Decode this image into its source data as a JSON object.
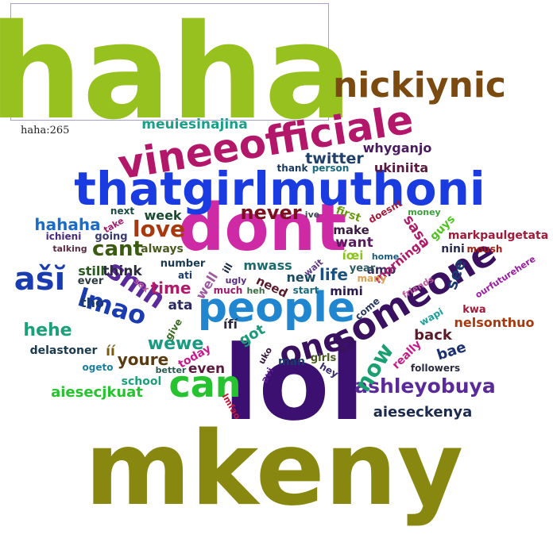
{
  "tooltip": {
    "text": "haha:265"
  },
  "words": [
    {
      "text": "haha",
      "color": "#96c11f"
    },
    {
      "text": "mkeny",
      "color": "#888810"
    },
    {
      "text": "lol",
      "color": "#3b1070"
    },
    {
      "text": "dont",
      "color": "#cf2aa6"
    },
    {
      "text": "thatgirlmuthoni",
      "color": "#1a3be0"
    },
    {
      "text": "vineeofficiale",
      "color": "#b3176a"
    },
    {
      "text": "nickiynic",
      "color": "#7a4a10"
    },
    {
      "text": "people",
      "color": "#1f86cf"
    },
    {
      "text": "someone",
      "color": "#3a1060"
    },
    {
      "text": "can",
      "color": "#26c230"
    },
    {
      "text": "ašĭ",
      "color": "#1a3cb0"
    },
    {
      "text": "one",
      "color": "#3a1060"
    },
    {
      "text": "lmao",
      "color": "#1a3cb0"
    },
    {
      "text": "smh",
      "color": "#5b2a9a"
    },
    {
      "text": "ashleyobuya",
      "color": "#5b2a9a"
    },
    {
      "text": "love",
      "color": "#a8380e"
    },
    {
      "text": "never",
      "color": "#7a1020"
    },
    {
      "text": "cant",
      "color": "#3a5a10"
    },
    {
      "text": "now",
      "color": "#1aa070"
    },
    {
      "text": "wewe",
      "color": "#1a9a80"
    },
    {
      "text": "hehe",
      "color": "#1aa07a"
    },
    {
      "text": "hahaha",
      "color": "#1a6cc8"
    },
    {
      "text": "time",
      "color": "#b01a6a"
    },
    {
      "text": "life",
      "color": "#1a5080"
    },
    {
      "text": "meuiesinajina",
      "color": "#1aa08a"
    },
    {
      "text": "twitter",
      "color": "#20406a"
    },
    {
      "text": "whyganjo",
      "color": "#4a1a60"
    },
    {
      "text": "ukiniita",
      "color": "#5a1a40"
    },
    {
      "text": "aiesecjkuat",
      "color": "#26c230"
    },
    {
      "text": "aieseckenya",
      "color": "#1a2a50"
    },
    {
      "text": "nelsonthuo",
      "color": "#a8380e"
    },
    {
      "text": "markpaulgetata",
      "color": "#a01a3a"
    },
    {
      "text": "youre",
      "color": "#5a3a10"
    },
    {
      "text": "even",
      "color": "#5a1a40"
    },
    {
      "text": "got",
      "color": "#1a9a7a"
    },
    {
      "text": "back",
      "color": "#5a1a2a"
    },
    {
      "text": "bae",
      "color": "#1a3070"
    },
    {
      "text": "sasa",
      "color": "#b01a6a"
    },
    {
      "text": "see",
      "color": "#1a3a70"
    },
    {
      "text": "want",
      "color": "#5a1a60"
    },
    {
      "text": "make",
      "color": "#3a1a40"
    },
    {
      "text": "week",
      "color": "#1a4a30"
    },
    {
      "text": "think",
      "color": "#2a2a40"
    },
    {
      "text": "still",
      "color": "#2a5a20"
    },
    {
      "text": "tho",
      "color": "#1a3a70"
    },
    {
      "text": "ata",
      "color": "#2a2a60"
    },
    {
      "text": "íí",
      "color": "#7a5a10"
    },
    {
      "text": "ífí",
      "color": "#2a2a40"
    },
    {
      "text": "new",
      "color": "#1a4a60"
    },
    {
      "text": "mwass",
      "color": "#1a6a70"
    },
    {
      "text": "need",
      "color": "#5a1a2a"
    },
    {
      "text": "mimi",
      "color": "#2a1a50"
    },
    {
      "text": "amp",
      "color": "#3a2a60"
    },
    {
      "text": "year",
      "color": "#2a5a60"
    },
    {
      "text": "íœi",
      "color": "#8ac41a"
    },
    {
      "text": "first",
      "color": "#6a9a10"
    },
    {
      "text": "ive",
      "color": "#3a4a50"
    },
    {
      "text": "morning",
      "color": "#b01a6a"
    },
    {
      "text": "nini",
      "color": "#2a2a50"
    },
    {
      "text": "guys",
      "color": "#4ac41a"
    },
    {
      "text": "money",
      "color": "#3aa03a"
    },
    {
      "text": "doesnt",
      "color": "#a01a3a"
    },
    {
      "text": "moush",
      "color": "#a81a10"
    },
    {
      "text": "home",
      "color": "#1a5a80"
    },
    {
      "text": "many",
      "color": "#e0a050"
    },
    {
      "text": "ourfuturehere",
      "color": "#9a1aa0"
    },
    {
      "text": "friends",
      "color": "#c05aa0"
    },
    {
      "text": "wapi",
      "color": "#1aa09a"
    },
    {
      "text": "kwa",
      "color": "#a01a3a"
    },
    {
      "text": "really",
      "color": "#c81a8a"
    },
    {
      "text": "come",
      "color": "#2a3a60"
    },
    {
      "text": "followers",
      "color": "#2a2a40"
    },
    {
      "text": "hey",
      "color": "#3a2a70"
    },
    {
      "text": "girls",
      "color": "#4a5a20"
    },
    {
      "text": "man",
      "color": "#1a3a70"
    },
    {
      "text": "uko",
      "color": "#3a1a40"
    },
    {
      "text": "avi",
      "color": "#5a1a90"
    },
    {
      "text": "lmfao",
      "color": "#c01a3a"
    },
    {
      "text": "ugly",
      "color": "#5a2a80"
    },
    {
      "text": "much",
      "color": "#a01a6a"
    },
    {
      "text": "heh",
      "color": "#3a6a40"
    },
    {
      "text": "start",
      "color": "#1a6a80"
    },
    {
      "text": "wait",
      "color": "#5a3a80"
    },
    {
      "text": "ill",
      "color": "#1a2a40"
    },
    {
      "text": "today",
      "color": "#c81a8a"
    },
    {
      "text": "well",
      "color": "#a05aa0"
    },
    {
      "text": "ati",
      "color": "#1a3a70"
    },
    {
      "text": "number",
      "color": "#1a3a50"
    },
    {
      "text": "always",
      "color": "#4a5a20"
    },
    {
      "text": "sex",
      "color": "#c05aa0"
    },
    {
      "text": "give",
      "color": "#3a6a20"
    },
    {
      "text": "better",
      "color": "#2a5a50"
    },
    {
      "text": "school",
      "color": "#1aa07a"
    },
    {
      "text": "ogeto",
      "color": "#1a80a0"
    },
    {
      "text": "delastoner",
      "color": "#1a3a50"
    },
    {
      "text": "ever",
      "color": "#2a3a40"
    },
    {
      "text": "going",
      "color": "#3a3a70"
    },
    {
      "text": "talking",
      "color": "#5a2a40"
    },
    {
      "text": "ichieni",
      "color": "#4a2a80"
    },
    {
      "text": "next",
      "color": "#1a4a40"
    },
    {
      "text": "take",
      "color": "#a01a6a"
    },
    {
      "text": "thank",
      "color": "#1a3a60"
    },
    {
      "text": "person",
      "color": "#1a6a80"
    }
  ]
}
